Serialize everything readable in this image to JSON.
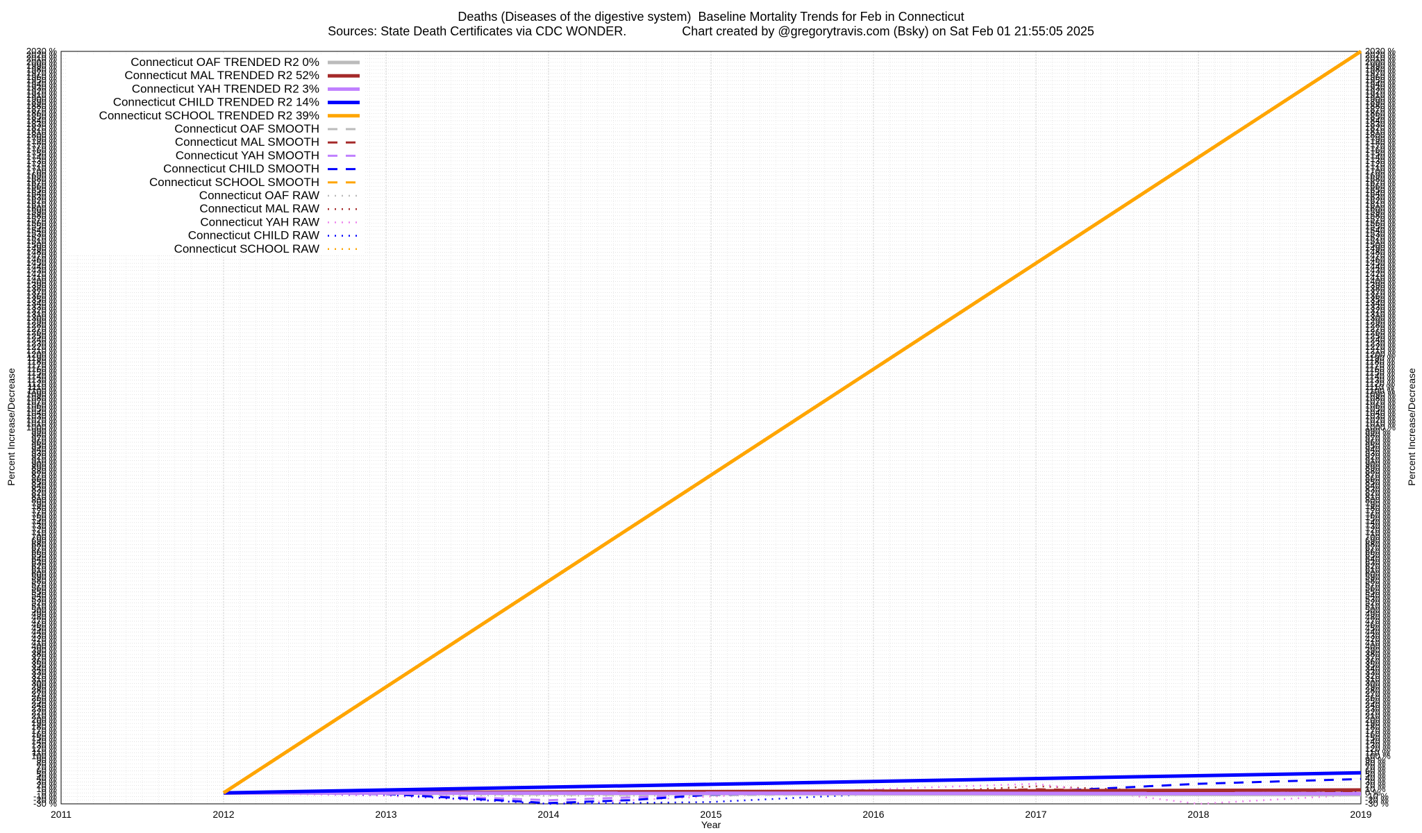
{
  "chart_data": {
    "type": "line",
    "title": "Deaths (Diseases of the digestive system)  Baseline Mortality Trends for Feb in Connecticut",
    "subtitle": "Sources: State Death Certificates via CDC WONDER.                Chart created by @gregorytravis.com (Bsky) on Sat Feb 01 21:55:05 2025",
    "xlabel": "Year",
    "ylabel": "Percent Increase/Decrease",
    "y2label": "Percent Increase/Decrease",
    "xlim": [
      2011,
      2019
    ],
    "ylim": [
      -30,
      2030
    ],
    "x_ticks": [
      "2011",
      "2012",
      "2013",
      "2014",
      "2015",
      "2016",
      "2017",
      "2018",
      "2019"
    ],
    "y_tick_step": 10,
    "y_tick_suffix": " %",
    "grid": true,
    "legend_position": "top-left",
    "series": [
      {
        "name": "Connecticut OAF TRENDED R2   0%",
        "style": "trend",
        "color": "#bbbbbb",
        "x": [
          2012,
          2019
        ],
        "values": [
          0,
          -5
        ]
      },
      {
        "name": "Connecticut MAL TRENDED R2  52%",
        "style": "trend",
        "color": "#a52a2a",
        "x": [
          2012,
          2019
        ],
        "values": [
          0,
          8
        ]
      },
      {
        "name": "Connecticut YAH TRENDED R2   3%",
        "style": "trend",
        "color": "#c080ff",
        "x": [
          2012,
          2019
        ],
        "values": [
          0,
          -2
        ]
      },
      {
        "name": "Connecticut CHILD TRENDED R2  14%",
        "style": "trend",
        "color": "#0000ff",
        "x": [
          2012,
          2019
        ],
        "values": [
          0,
          55
        ]
      },
      {
        "name": "Connecticut SCHOOL TRENDED R2  39%",
        "style": "trend",
        "color": "#ffa500",
        "x": [
          2012,
          2019
        ],
        "values": [
          0,
          2030
        ]
      },
      {
        "name": "Connecticut OAF SMOOTH",
        "style": "smooth",
        "color": "#bbbbbb",
        "x": [
          2012,
          2013,
          2014,
          2015,
          2016,
          2017,
          2018,
          2019
        ],
        "values": [
          0,
          -2,
          -5,
          -6,
          -3,
          -2,
          -1,
          -3
        ]
      },
      {
        "name": "Connecticut MAL SMOOTH",
        "style": "smooth",
        "color": "#a52a2a",
        "x": [
          2012,
          2013,
          2014,
          2015,
          2016,
          2017,
          2018,
          2019
        ],
        "values": [
          0,
          3,
          2,
          1,
          0,
          10,
          3,
          5
        ]
      },
      {
        "name": "Connecticut YAH SMOOTH",
        "style": "smooth",
        "color": "#c080ff",
        "x": [
          2012,
          2013,
          2014,
          2015,
          2016,
          2017,
          2018,
          2019
        ],
        "values": [
          0,
          -4,
          -20,
          -5,
          8,
          2,
          -3,
          -2
        ]
      },
      {
        "name": "Connecticut CHILD SMOOTH",
        "style": "smooth",
        "color": "#0000ff",
        "x": [
          2012,
          2013,
          2014,
          2014.5,
          2015,
          2016,
          2017,
          2018,
          2019
        ],
        "values": [
          0,
          -3,
          -28,
          -20,
          -5,
          -2,
          3,
          25,
          38
        ]
      },
      {
        "name": "Connecticut SCHOOL SMOOTH",
        "style": "smooth",
        "color": "#ffa500",
        "x": [
          2012,
          2013,
          2014,
          2015,
          2016,
          2017,
          2018,
          2019
        ],
        "values": [
          0,
          -1,
          -2,
          -3,
          -4,
          -4,
          -4,
          -3
        ]
      },
      {
        "name": "Connecticut OAF RAW",
        "style": "raw",
        "color": "#bbbbbb",
        "x": [
          2012,
          2013,
          2014,
          2015,
          2016,
          2017,
          2018,
          2019
        ],
        "values": [
          0,
          -5,
          -8,
          -7,
          -2,
          -4,
          -6,
          -5
        ]
      },
      {
        "name": "Connecticut MAL RAW",
        "style": "raw",
        "color": "#a52a2a",
        "x": [
          2012,
          2013,
          2014,
          2015,
          2016,
          2017,
          2018,
          2019
        ],
        "values": [
          0,
          5,
          -3,
          2,
          -4,
          18,
          2,
          6
        ]
      },
      {
        "name": "Connecticut YAH RAW",
        "style": "raw",
        "color": "#ee82ee",
        "x": [
          2012,
          2013,
          2014,
          2015,
          2016,
          2017,
          2018,
          2019
        ],
        "values": [
          0,
          -8,
          -30,
          -10,
          10,
          25,
          -30,
          -5
        ]
      },
      {
        "name": "Connecticut CHILD RAW",
        "style": "raw",
        "color": "#0000ff",
        "x": [
          2012,
          2013,
          2014,
          2015,
          2016,
          2017,
          2018,
          2019
        ],
        "values": [
          0,
          -5,
          -30,
          -25,
          -3,
          -2,
          2,
          3
        ]
      },
      {
        "name": "Connecticut SCHOOL RAW",
        "style": "raw",
        "color": "#ffa500",
        "x": [
          2012,
          2013,
          2014,
          2015,
          2016,
          2017,
          2018,
          2019
        ],
        "values": [
          0,
          -2,
          -3,
          -4,
          -3,
          -5,
          -6,
          -4
        ]
      }
    ]
  }
}
